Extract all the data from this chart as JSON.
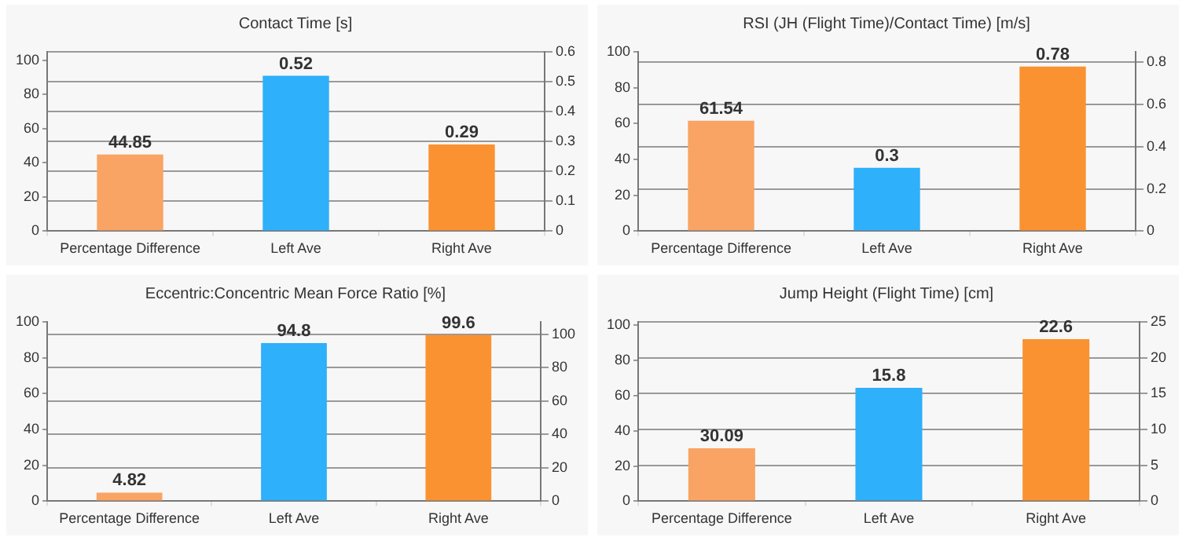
{
  "chart_data": [
    {
      "type": "bar",
      "title": "Contact Time [s]",
      "categories": [
        "Percentage Difference",
        "Left Ave",
        "Right Ave"
      ],
      "series": [
        {
          "color": "#f9a464",
          "values": [
            44.85,
            null,
            null
          ]
        },
        {
          "color": "#2eb0fb",
          "values": [
            null,
            0.52,
            null
          ],
          "axis": "y2"
        },
        {
          "color": "#fb9231",
          "values": [
            null,
            null,
            0.29
          ],
          "axis": "y2"
        }
      ],
      "ylim": [
        0,
        105
      ],
      "yticks": [
        0,
        20,
        40,
        60,
        80,
        100
      ],
      "y2lim": [
        0,
        0.6
      ],
      "y2ticks": [
        0,
        0.1,
        0.2,
        0.3,
        0.4,
        0.5,
        0.6
      ],
      "grid": "y",
      "data_labels": true,
      "legend": false
    },
    {
      "type": "bar",
      "title": "RSI (JH (Flight Time)/Contact Time) [m/s]",
      "categories": [
        "Percentage Difference",
        "Left Ave",
        "Right Ave"
      ],
      "series": [
        {
          "color": "#f9a464",
          "values": [
            61.54,
            null,
            null
          ]
        },
        {
          "color": "#2eb0fb",
          "values": [
            null,
            0.3,
            null
          ],
          "axis": "y2"
        },
        {
          "color": "#fb9231",
          "values": [
            null,
            null,
            0.78
          ],
          "axis": "y2"
        }
      ],
      "ylim": [
        0,
        100
      ],
      "yticks": [
        0,
        20,
        40,
        60,
        80,
        100
      ],
      "y2lim": [
        0,
        0.85
      ],
      "y2ticks": [
        0,
        0.2,
        0.4,
        0.6,
        0.8
      ],
      "grid": "y",
      "data_labels": true,
      "legend": false
    },
    {
      "type": "bar",
      "title": "Eccentric:Concentric Mean Force Ratio [%]",
      "categories": [
        "Percentage Difference",
        "Left Ave",
        "Right Ave"
      ],
      "series": [
        {
          "color": "#f9a464",
          "values": [
            4.82,
            null,
            null
          ]
        },
        {
          "color": "#2eb0fb",
          "values": [
            null,
            94.8,
            null
          ],
          "axis": "y2"
        },
        {
          "color": "#fb9231",
          "values": [
            null,
            null,
            99.6
          ],
          "axis": "y2"
        }
      ],
      "ylim": [
        0,
        100
      ],
      "yticks": [
        0,
        20,
        40,
        60,
        80,
        100
      ],
      "y2lim": [
        0,
        107.5
      ],
      "y2ticks": [
        0,
        20,
        40,
        60,
        80,
        100
      ],
      "grid": "y",
      "data_labels": true,
      "legend": false
    },
    {
      "type": "bar",
      "title": "Jump Height (Flight Time) [cm]",
      "categories": [
        "Percentage Difference",
        "Left Ave",
        "Right Ave"
      ],
      "series": [
        {
          "color": "#f9a464",
          "values": [
            30.09,
            null,
            null
          ]
        },
        {
          "color": "#2eb0fb",
          "values": [
            null,
            15.8,
            null
          ],
          "axis": "y2"
        },
        {
          "color": "#fb9231",
          "values": [
            null,
            null,
            22.6
          ],
          "axis": "y2"
        }
      ],
      "ylim": [
        0,
        102
      ],
      "yticks": [
        0,
        20,
        40,
        60,
        80,
        100
      ],
      "y2lim": [
        0,
        25
      ],
      "y2ticks": [
        0,
        5,
        10,
        15,
        20,
        25
      ],
      "grid": "y",
      "data_labels": true,
      "legend": false
    }
  ]
}
